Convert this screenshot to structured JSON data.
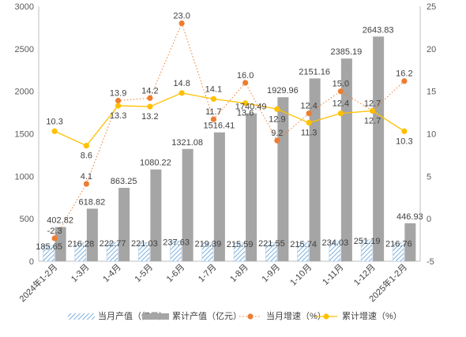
{
  "chart_data": {
    "type": "bar",
    "categories": [
      "2024年1-2月",
      "1-3月",
      "1-4月",
      "1-5月",
      "1-6月",
      "1-7月",
      "1-8月",
      "1-9月",
      "1-10月",
      "1-11月",
      "1-12月",
      "2025年1-2月"
    ],
    "axis_left": {
      "min": 0,
      "max": 3000,
      "ticks": [
        "0",
        "500",
        "1000",
        "1500",
        "2000",
        "2500",
        "3000"
      ]
    },
    "axis_right": {
      "min": -5,
      "max": 25,
      "ticks": [
        "-5",
        "0",
        "5",
        "10",
        "15",
        "20",
        "25"
      ]
    },
    "series": [
      {
        "name": "当月产值（亿元）",
        "type": "bar",
        "axis": "left",
        "color": "#5b9bd5",
        "pattern": "diagonal-hatch",
        "values": [
          185.65,
          216.28,
          222.77,
          221.03,
          237.63,
          219.39,
          215.59,
          221.55,
          215.74,
          234.03,
          251.19,
          216.76
        ],
        "labels": [
          "185.65",
          "216.28",
          "222.77",
          "221.03",
          "237.63",
          "219.39",
          "215.59",
          "221.55",
          "215.74",
          "234.03",
          "251.19",
          "216.76"
        ]
      },
      {
        "name": "累计产值（亿元）",
        "type": "bar",
        "axis": "left",
        "color": "#a5a5a5",
        "values": [
          402.82,
          618.82,
          863.25,
          1080.22,
          1321.08,
          1516.41,
          1740.49,
          1929.96,
          2151.16,
          2385.19,
          2643.83,
          446.93
        ],
        "labels": [
          "402.82",
          "618.82",
          "863.25",
          "1080.22",
          "1321.08",
          "1516.41",
          "1740.49",
          "1929.96",
          "2151.16",
          "2385.19",
          "2643.83",
          "446.93"
        ]
      },
      {
        "name": "当月增速（%）",
        "type": "line",
        "axis": "right",
        "color": "#ed7d31",
        "dotted": true,
        "values": [
          -2.3,
          4.1,
          13.9,
          14.2,
          23.0,
          11.7,
          16.0,
          9.2,
          12.4,
          15.0,
          12.7,
          16.2
        ],
        "labels": [
          "-2.3",
          "4.1",
          "13.9",
          "14.2",
          "23.0",
          "11.7",
          "16.0",
          "9.2",
          "12.4",
          "15.0",
          "12.7",
          "16.2"
        ]
      },
      {
        "name": "累计增速（%）",
        "type": "line",
        "axis": "right",
        "color": "#ffc000",
        "values": [
          10.3,
          8.6,
          13.3,
          13.2,
          14.8,
          14.1,
          13.6,
          12.9,
          11.3,
          12.4,
          12.7,
          10.3
        ],
        "labels": [
          "10.3",
          "8.6",
          "13.3",
          "13.2",
          "14.8",
          "14.1",
          "13.6",
          "12.9",
          "11.3",
          "12.4",
          "12.7",
          "10.3"
        ]
      }
    ],
    "legend": {
      "position": "bottom",
      "items": [
        "当月产值（亿元）",
        "累计产值（亿元）",
        "当月增速（%）",
        "累计增速（%）"
      ]
    },
    "grid": false
  }
}
